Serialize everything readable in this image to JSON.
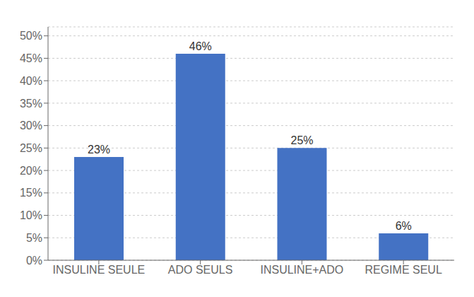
{
  "chart_data": {
    "type": "bar",
    "categories": [
      "INSULINE SEULE",
      "ADO SEULS",
      "INSULINE+ADO",
      "REGIME SEUL"
    ],
    "values": [
      23,
      46,
      25,
      6
    ],
    "value_labels": [
      "23%",
      "46%",
      "25%",
      "6%"
    ],
    "data_labels": true,
    "color": "#4472C4",
    "ylim": [
      0,
      52
    ],
    "yticks": [
      {
        "value": 0,
        "label": "0%"
      },
      {
        "value": 5,
        "label": "5%"
      },
      {
        "value": 10,
        "label": "10%"
      },
      {
        "value": 15,
        "label": "15%"
      },
      {
        "value": 20,
        "label": "20%"
      },
      {
        "value": 25,
        "label": "25%"
      },
      {
        "value": 30,
        "label": "30%"
      },
      {
        "value": 35,
        "label": "35%"
      },
      {
        "value": 40,
        "label": "40%"
      },
      {
        "value": 45,
        "label": "45%"
      },
      {
        "value": 50,
        "label": "50%"
      }
    ],
    "grid": true
  }
}
